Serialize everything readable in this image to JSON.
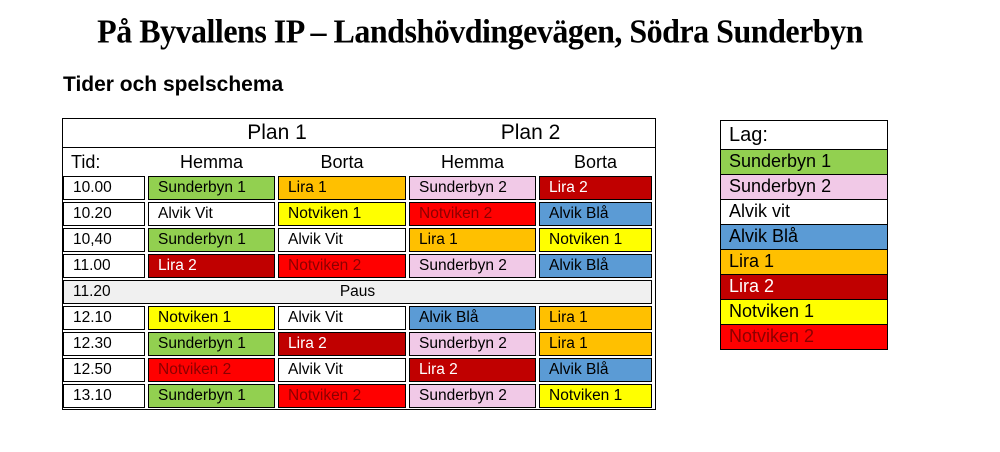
{
  "page": {
    "title": "På Byvallens IP – Landshövdingevägen, Södra Sunderbyn",
    "subtitle": "Tider och spelschema"
  },
  "schedule": {
    "plan1_label": "Plan 1",
    "plan2_label": "Plan 2",
    "columns": [
      "Tid:",
      "Hemma",
      "Borta",
      "Hemma",
      "Borta"
    ],
    "pause_bg": "#F0F0F0",
    "rows": [
      {
        "time": "10.00",
        "cells": [
          {
            "label": "Sunderbyn 1",
            "bg": "#92D050",
            "fg": "#000000"
          },
          {
            "label": "Lira 1",
            "bg": "#FFC000",
            "fg": "#000000"
          },
          {
            "label": "Sunderbyn 2",
            "bg": "#F1C9E7",
            "fg": "#000000"
          },
          {
            "label": "Lira 2",
            "bg": "#C00000",
            "fg": "#FFFFFF"
          }
        ]
      },
      {
        "time": "10.20",
        "cells": [
          {
            "label": "Alvik Vit",
            "bg": "#FFFFFF",
            "fg": "#000000"
          },
          {
            "label": "Notviken 1",
            "bg": "#FFFF00",
            "fg": "#000000"
          },
          {
            "label": "Notviken 2",
            "bg": "#FF0000",
            "fg": "#8B0000"
          },
          {
            "label": "Alvik Blå",
            "bg": "#5B9BD5",
            "fg": "#000000"
          }
        ]
      },
      {
        "time": "10,40",
        "cells": [
          {
            "label": "Sunderbyn 1",
            "bg": "#92D050",
            "fg": "#000000"
          },
          {
            "label": "Alvik Vit",
            "bg": "#FFFFFF",
            "fg": "#000000"
          },
          {
            "label": "Lira 1",
            "bg": "#FFC000",
            "fg": "#000000"
          },
          {
            "label": "Notviken 1",
            "bg": "#FFFF00",
            "fg": "#000000"
          }
        ]
      },
      {
        "time": "11.00",
        "cells": [
          {
            "label": "Lira 2",
            "bg": "#C00000",
            "fg": "#FFFFFF"
          },
          {
            "label": "Notviken 2",
            "bg": "#FF0000",
            "fg": "#8B0000"
          },
          {
            "label": "Sunderbyn 2",
            "bg": "#F1C9E7",
            "fg": "#000000"
          },
          {
            "label": "Alvik Blå",
            "bg": "#5B9BD5",
            "fg": "#000000"
          }
        ]
      },
      {
        "time": "11.20",
        "label": "Paus",
        "pause": true
      },
      {
        "time": "12.10",
        "cells": [
          {
            "label": "Notviken 1",
            "bg": "#FFFF00",
            "fg": "#000000"
          },
          {
            "label": "Alvik Vit",
            "bg": "#FFFFFF",
            "fg": "#000000"
          },
          {
            "label": "Alvik Blå",
            "bg": "#5B9BD5",
            "fg": "#000000"
          },
          {
            "label": "Lira 1",
            "bg": "#FFC000",
            "fg": "#000000"
          }
        ]
      },
      {
        "time": "12.30",
        "cells": [
          {
            "label": "Sunderbyn 1",
            "bg": "#92D050",
            "fg": "#000000"
          },
          {
            "label": "Lira 2",
            "bg": "#C00000",
            "fg": "#FFFFFF"
          },
          {
            "label": "Sunderbyn 2",
            "bg": "#F1C9E7",
            "fg": "#000000"
          },
          {
            "label": "Lira 1",
            "bg": "#FFC000",
            "fg": "#000000"
          }
        ]
      },
      {
        "time": "12.50",
        "cells": [
          {
            "label": "Notviken 2",
            "bg": "#FF0000",
            "fg": "#8B0000"
          },
          {
            "label": "Alvik Vit",
            "bg": "#FFFFFF",
            "fg": "#000000"
          },
          {
            "label": "Lira 2",
            "bg": "#C00000",
            "fg": "#FFFFFF"
          },
          {
            "label": "Alvik Blå",
            "bg": "#5B9BD5",
            "fg": "#000000"
          }
        ]
      },
      {
        "time": "13.10",
        "cells": [
          {
            "label": "Sunderbyn 1",
            "bg": "#92D050",
            "fg": "#000000"
          },
          {
            "label": "Notviken 2",
            "bg": "#FF0000",
            "fg": "#8B0000"
          },
          {
            "label": "Sunderbyn 2",
            "bg": "#F1C9E7",
            "fg": "#000000"
          },
          {
            "label": "Notviken 1",
            "bg": "#FFFF00",
            "fg": "#000000"
          }
        ]
      }
    ]
  },
  "legend": {
    "title": "Lag:",
    "items": [
      {
        "label": "Sunderbyn 1",
        "bg": "#92D050",
        "fg": "#000000"
      },
      {
        "label": "Sunderbyn 2",
        "bg": "#F1C9E7",
        "fg": "#000000"
      },
      {
        "label": "Alvik vit",
        "bg": "#FFFFFF",
        "fg": "#000000"
      },
      {
        "label": "Alvik Blå",
        "bg": "#5B9BD5",
        "fg": "#000000"
      },
      {
        "label": "Lira 1",
        "bg": "#FFC000",
        "fg": "#000000"
      },
      {
        "label": "Lira 2",
        "bg": "#C00000",
        "fg": "#FFFFFF"
      },
      {
        "label": "Notviken 1",
        "bg": "#FFFF00",
        "fg": "#000000"
      },
      {
        "label": "Notviken 2",
        "bg": "#FF0000",
        "fg": "#8B0000"
      }
    ]
  }
}
